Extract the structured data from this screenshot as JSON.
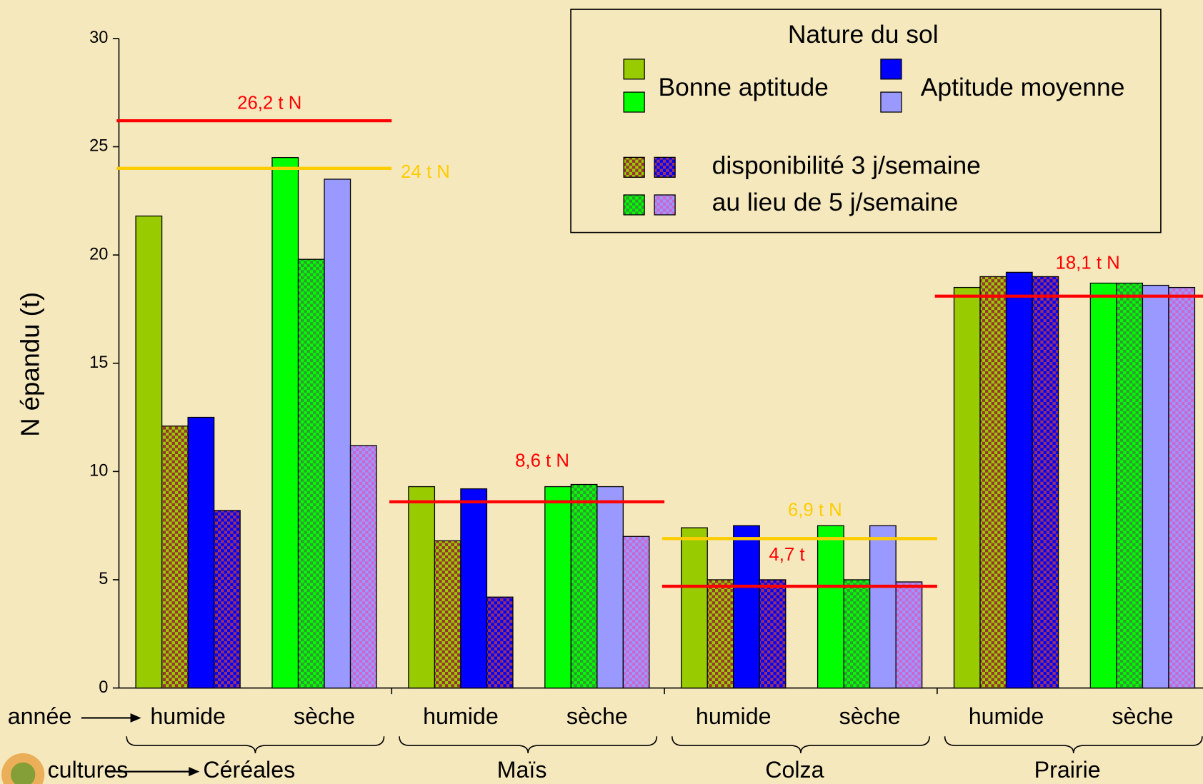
{
  "chart_data": {
    "type": "bar",
    "ylabel": "N épandu (t)",
    "ylim": [
      0,
      30
    ],
    "yticks": [
      0,
      5,
      10,
      15,
      20,
      25,
      30
    ],
    "year_label": "année",
    "crop_label": "cultures",
    "crops": [
      "Céréales",
      "Maïs",
      "Colza",
      "Prairie"
    ],
    "categories": [
      "humide",
      "sèche",
      "humide",
      "sèche",
      "humide",
      "sèche",
      "humide",
      "sèche"
    ],
    "series": [
      {
        "colors": [
          "#99cc00",
          "#00ff00"
        ],
        "values": [
          21.8,
          24.5,
          9.3,
          9.3,
          7.4,
          7.5,
          18.5,
          18.7
        ]
      },
      {
        "colors": [
          [
            "#99cc00",
            "#993333"
          ],
          [
            "#00ff00",
            "#339933"
          ]
        ],
        "values": [
          12.1,
          19.8,
          6.8,
          9.4,
          5.0,
          5.0,
          19.0,
          18.7
        ]
      },
      {
        "colors": [
          "#0000ff",
          "#9999ff"
        ],
        "values": [
          12.5,
          23.5,
          9.2,
          9.3,
          7.5,
          7.5,
          19.2,
          18.6
        ]
      },
      {
        "colors": [
          [
            "#0000ff",
            "#993366"
          ],
          [
            "#9999ff",
            "#cc66cc"
          ]
        ],
        "values": [
          8.2,
          11.2,
          4.2,
          7.0,
          5.0,
          4.9,
          19.0,
          18.5
        ]
      }
    ],
    "reference_lines": [
      {
        "value": 26.2,
        "label": "26,2 t N",
        "color": "#ff0000",
        "crop": 0
      },
      {
        "value": 24,
        "label": "24 t N",
        "color": "#ffcc00",
        "crop": 0
      },
      {
        "value": 8.6,
        "label": "8,6 t N",
        "color": "#ff0000",
        "crop": 1
      },
      {
        "value": 6.9,
        "label": "6,9 t N",
        "color": "#ffcc00",
        "crop": 2
      },
      {
        "value": 4.7,
        "label": "4,7 t",
        "color": "#ff0000",
        "crop": 2
      },
      {
        "value": 18.1,
        "label": "18,1 t N",
        "color": "#ff0000",
        "crop": 3
      }
    ],
    "legend": {
      "title": "Nature du sol",
      "soil": [
        "Bonne aptitude",
        "Aptitude moyenne"
      ],
      "availability": [
        "disponibilité 3 j/semaine",
        "au lieu de 5 j/semaine"
      ]
    }
  }
}
